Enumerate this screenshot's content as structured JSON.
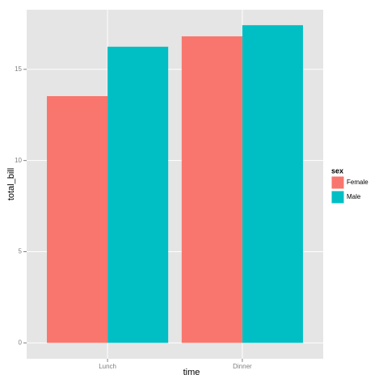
{
  "chart_data": {
    "type": "bar",
    "x_label": "time",
    "y_label": "total_bill",
    "legend_title": "sex",
    "categories": [
      "Lunch",
      "Dinner"
    ],
    "series": [
      {
        "name": "Female",
        "color": "#f8766d",
        "values": [
          13.53,
          16.81
        ]
      },
      {
        "name": "Male",
        "color": "#00bfc4",
        "values": [
          16.24,
          17.42
        ]
      }
    ],
    "ylim": [
      -0.87,
      18.27
    ],
    "yticks": [
      0,
      5,
      10,
      15
    ],
    "grid": true,
    "legend": "right"
  }
}
